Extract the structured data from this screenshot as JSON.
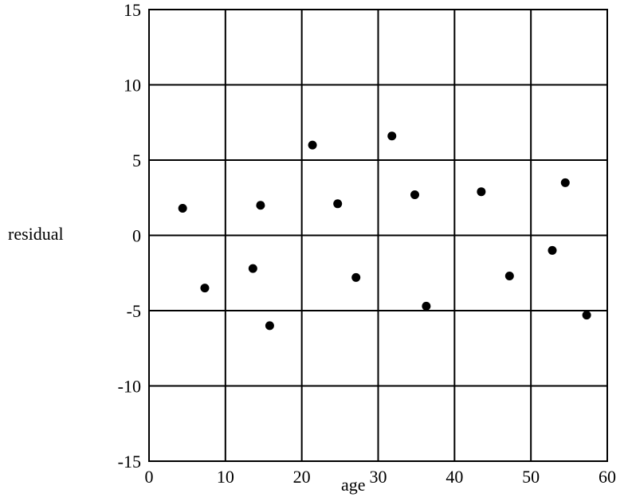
{
  "chart_data": {
    "type": "scatter",
    "title": "",
    "xlabel": "age",
    "ylabel": "residual",
    "xlim": [
      0,
      60
    ],
    "ylim": [
      -15,
      15
    ],
    "x_ticks": [
      0,
      10,
      20,
      30,
      40,
      50,
      60
    ],
    "y_ticks": [
      -15,
      -10,
      -5,
      0,
      5,
      10,
      15
    ],
    "x_tick_labels": [
      "0",
      "10",
      "20",
      "30",
      "40",
      "50",
      "60"
    ],
    "y_tick_labels": [
      "-15",
      "-10",
      "-5",
      "0",
      "5",
      "10",
      "15"
    ],
    "grid": true,
    "legend": "none",
    "marker_color": "#000000",
    "grid_color": "#000000",
    "series": [
      {
        "x": [
          4.4,
          7.3,
          13.6,
          14.6,
          15.8,
          21.4,
          24.7,
          27.1,
          31.8,
          34.8,
          36.3,
          43.5,
          47.2,
          52.8,
          54.5,
          57.3
        ],
        "y": [
          1.8,
          -3.5,
          -2.2,
          2.0,
          -6.0,
          6.0,
          2.1,
          -2.8,
          6.6,
          2.7,
          -4.7,
          2.9,
          -2.7,
          -1.0,
          3.5,
          -5.3
        ]
      }
    ]
  }
}
